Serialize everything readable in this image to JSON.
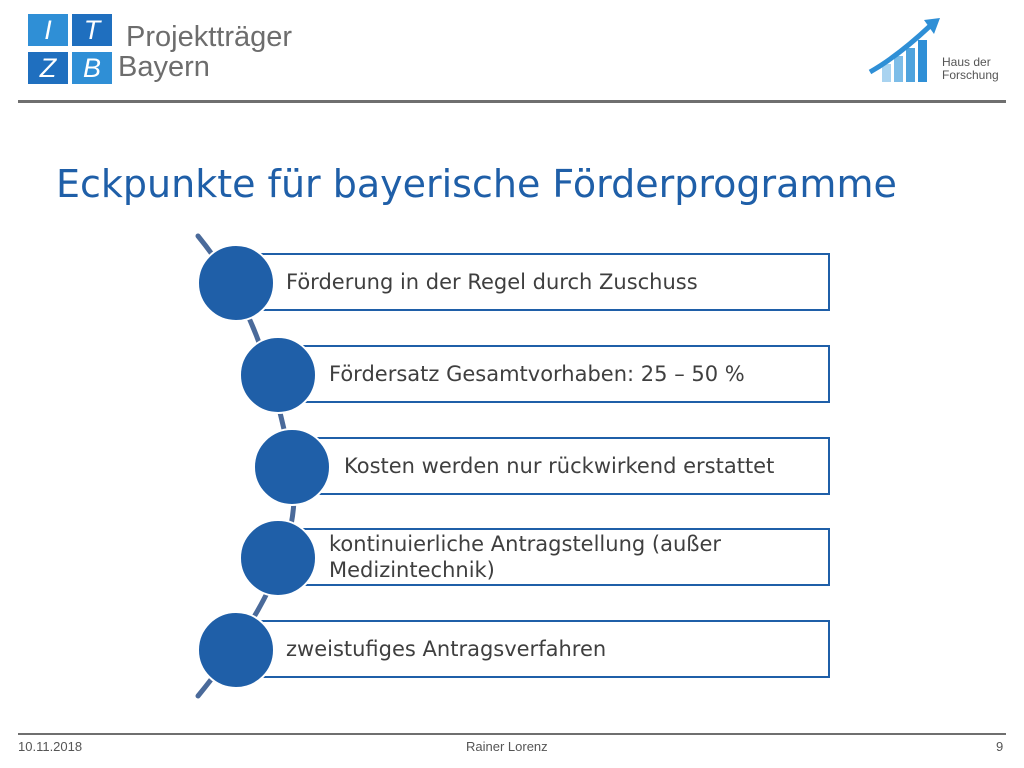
{
  "header": {
    "org_logo": {
      "cells": [
        "I",
        "T",
        "Z",
        "B"
      ],
      "line1": "Projektträger",
      "line2": "Bayern"
    },
    "partner_logo": {
      "line1": "Haus der",
      "line2": "Forschung",
      "icon": "rising-bars-arrow-icon"
    }
  },
  "slide": {
    "title": "Eckpunkte für bayerische Förderprogramme",
    "items": [
      {
        "line1": "Förderung in der Regel durch Zuschuss",
        "line2": ""
      },
      {
        "line1": "Fördersatz Gesamtvorhaben: 25 – 50 %",
        "line2": ""
      },
      {
        "line1": "Kosten werden nur rückwirkend erstattet",
        "line2": ""
      },
      {
        "line1": "kontinuierliche Antragstellung (außer",
        "line2": "Medizintechnik)"
      },
      {
        "line1": "zweistufiges Antragsverfahren",
        "line2": ""
      }
    ]
  },
  "footer": {
    "date": "10.11.2018",
    "author": "Rainer Lorenz",
    "page": "9"
  },
  "colors": {
    "accent": "#1f5fa8",
    "circle": "#1f5fa8",
    "connector": "#4a6a9a",
    "text": "#3f3f3f"
  }
}
